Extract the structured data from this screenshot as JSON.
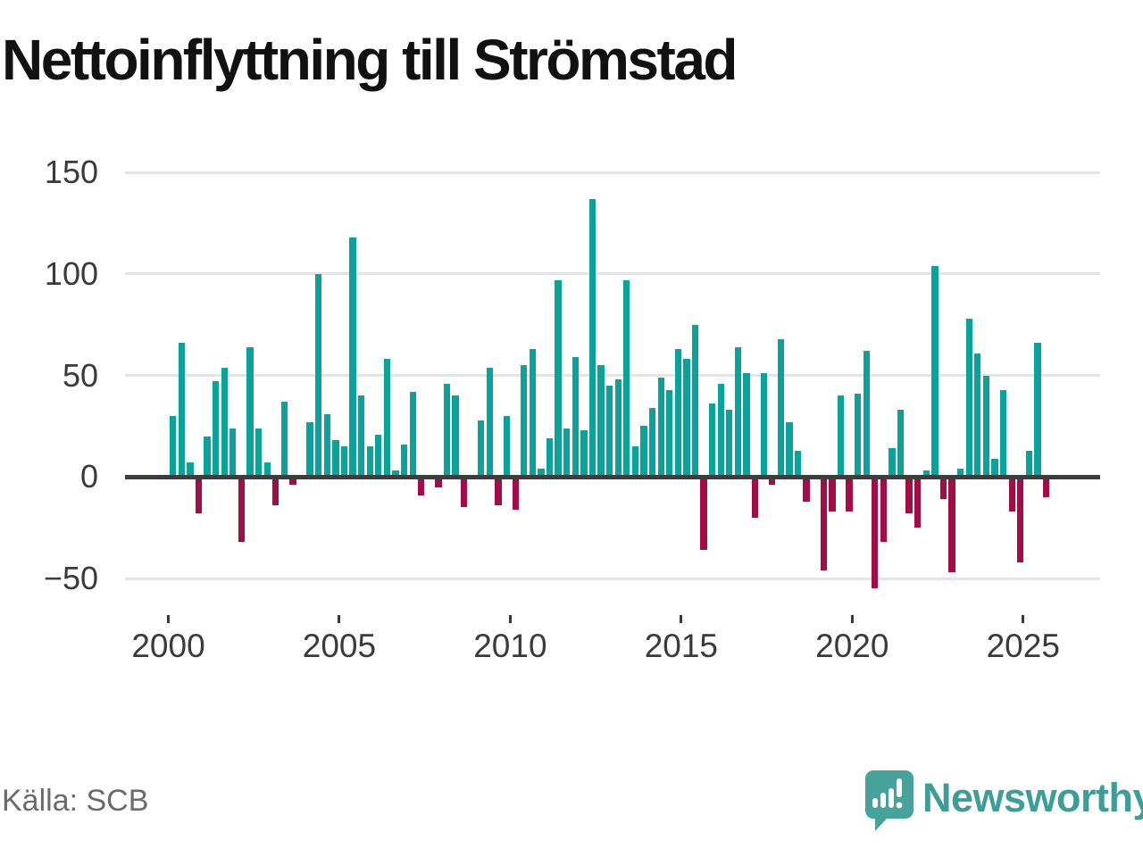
{
  "chart_data": {
    "type": "bar",
    "title": "Nettoinflyttning till Strömstad",
    "source": "Källa: SCB",
    "frequency": "quarterly",
    "start_period": "2000Q1",
    "end_period": "2025Q3",
    "y_axis": {
      "ticks": [
        150,
        100,
        50,
        0,
        -50
      ],
      "grid": true,
      "zero_baseline": true
    },
    "x_axis": {
      "tick_labels": [
        "2000",
        "2005",
        "2010",
        "2015",
        "2020",
        "2025"
      ],
      "tick_interval_years": 5
    },
    "colors": {
      "positive": "#0aa29a",
      "negative": "#a30d45"
    },
    "values": [
      30,
      66,
      7,
      -18,
      20,
      47,
      54,
      24,
      -32,
      64,
      24,
      7,
      -14,
      37,
      -4,
      0,
      27,
      100,
      31,
      18,
      15,
      118,
      40,
      15,
      21,
      58,
      3,
      16,
      42,
      -9,
      0,
      -5,
      46,
      40,
      -15,
      0,
      28,
      54,
      -14,
      30,
      -16,
      55,
      63,
      4,
      19,
      97,
      24,
      59,
      23,
      137,
      55,
      45,
      48,
      97,
      15,
      25,
      34,
      49,
      43,
      63,
      58,
      75,
      -36,
      36,
      46,
      33,
      64,
      51,
      -20,
      51,
      -4,
      68,
      27,
      13,
      -12,
      0,
      -46,
      -17,
      40,
      -17,
      41,
      62,
      -55,
      -32,
      14,
      33,
      -18,
      -25,
      3,
      104,
      -11,
      -47,
      4,
      78,
      61,
      50,
      9,
      43,
      -17,
      -42,
      13,
      66,
      -10
    ]
  },
  "branding": {
    "wordmark": "Newsworthy"
  }
}
